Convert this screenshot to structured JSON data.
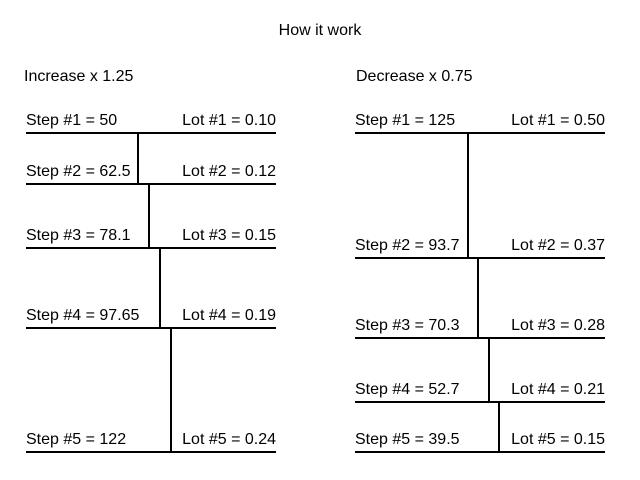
{
  "title": "How it work",
  "increase": {
    "heading": "Increase x 1.25",
    "rows": [
      {
        "step": "Step #1 = 50",
        "lot": "Lot #1 = 0.10"
      },
      {
        "step": "Step #2 = 62.5",
        "lot": "Lot #2 = 0.12"
      },
      {
        "step": "Step #3 = 78.1",
        "lot": "Lot #3 = 0.15"
      },
      {
        "step": "Step #4 = 97.65",
        "lot": "Lot #4 = 0.19"
      },
      {
        "step": "Step #5 = 122",
        "lot": "Lot #5 = 0.24"
      }
    ]
  },
  "decrease": {
    "heading": "Decrease x 0.75",
    "rows": [
      {
        "step": "Step #1 = 125",
        "lot": "Lot #1 = 0.50"
      },
      {
        "step": "Step #2 = 93.7",
        "lot": "Lot #2 = 0.37"
      },
      {
        "step": "Step #3 = 70.3",
        "lot": "Lot #3 = 0.28"
      },
      {
        "step": "Step #4 = 52.7",
        "lot": "Lot #4 = 0.21"
      },
      {
        "step": "Step #5 = 39.5",
        "lot": "Lot #5 = 0.15"
      }
    ]
  }
}
